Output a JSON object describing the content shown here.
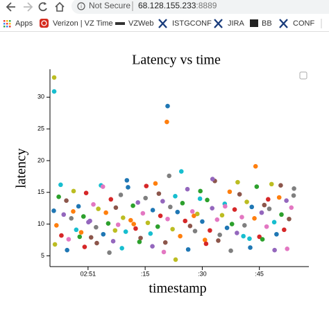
{
  "browser": {
    "security": "Not Secure",
    "url_host": "68.128.155.233",
    "url_port": ":8889"
  },
  "bookmarks": [
    "Apps",
    "Verizon | VZ Time",
    "VZWeb",
    "ISTGCONF",
    "JIRA",
    "BB",
    "CONF"
  ],
  "chart_data": {
    "type": "scatter",
    "title": "Latency vs time",
    "x_label": "timestamp",
    "y_label": "latency",
    "x": [
      -9.0,
      -8.3,
      -7.7,
      -7.0,
      -6.4,
      -5.7,
      -5.1,
      -4.4,
      -3.8,
      -3.1,
      -2.5,
      -1.8,
      -1.2,
      -0.5,
      0.1,
      0.8,
      1.4,
      2.1,
      2.7,
      3.4,
      4.0,
      4.7,
      5.3,
      6.0,
      6.6,
      7.3,
      7.9,
      8.6,
      9.2,
      9.9,
      10.5,
      11.2,
      11.8,
      12.5,
      13.1,
      13.8,
      14.4,
      15.1,
      15.7,
      16.4,
      17.0,
      17.7,
      18.3,
      19.0,
      19.6,
      20.3,
      20.9,
      21.6,
      22.2,
      22.9,
      23.5,
      24.2,
      24.8,
      25.5,
      26.1,
      26.8,
      27.4,
      28.1,
      28.7,
      29.4,
      30.0,
      30.7,
      31.3,
      32.0,
      32.6,
      33.3,
      33.9,
      34.6,
      35.2,
      35.9,
      36.5,
      37.2,
      37.8,
      38.5,
      39.1,
      39.8,
      40.4,
      41.1,
      41.7,
      42.4,
      43.0,
      43.7,
      44.3,
      45.0,
      45.6,
      46.3,
      46.9,
      47.6,
      48.2,
      48.9,
      49.5,
      50.2,
      50.8,
      51.5,
      52.1,
      52.8,
      53.4,
      54.1,
      -8.7,
      -7.2,
      -5.5,
      -3.9,
      -2.2,
      -0.9,
      0.5,
      2.3,
      3.9,
      5.6,
      7.1,
      8.9,
      10.2,
      12.0,
      13.5,
      15.3,
      16.9,
      18.6,
      19.9,
      21.3,
      23.0,
      24.5,
      26.3,
      27.8,
      29.5,
      31.0,
      32.7,
      34.2,
      36.0,
      37.5,
      39.3,
      40.8,
      42.6,
      44.0,
      45.8,
      47.3,
      49.0,
      50.6,
      52.3,
      54.0,
      -8.9,
      -8.9,
      20.9,
      20.7
    ],
    "values": [
      12.1,
      9.8,
      14.3,
      8.2,
      11.5,
      13.7,
      7.6,
      10.9,
      15.2,
      9.1,
      12.8,
      8.7,
      11.2,
      14.9,
      10.3,
      7.9,
      13.1,
      9.5,
      12.4,
      16.1,
      8.4,
      11.8,
      10.1,
      13.9,
      7.3,
      12.6,
      9.9,
      14.6,
      11.0,
      8.8,
      15.8,
      10.6,
      12.9,
      9.3,
      13.4,
      7.8,
      11.7,
      14.1,
      10.2,
      8.5,
      12.2,
      16.4,
      9.6,
      11.3,
      13.6,
      7.1,
      10.8,
      12.7,
      9.2,
      14.4,
      11.9,
      8.1,
      13.3,
      10.5,
      15.5,
      9.7,
      12.0,
      8.9,
      11.6,
      14.0,
      10.4,
      7.5,
      13.8,
      9.0,
      12.5,
      16.8,
      10.7,
      8.3,
      11.4,
      13.2,
      9.4,
      15.1,
      10.0,
      12.3,
      8.6,
      14.7,
      11.1,
      9.8,
      13.5,
      7.7,
      12.7,
      10.9,
      15.9,
      8.0,
      11.8,
      13.0,
      9.6,
      12.4,
      16.3,
      10.3,
      8.4,
      14.2,
      11.5,
      9.1,
      13.7,
      10.8,
      12.6,
      15.6,
      6.8,
      16.2,
      5.9,
      12.0,
      8.0,
      6.4,
      10.5,
      7.0,
      15.9,
      5.5,
      9.0,
      6.2,
      16.9,
      10.0,
      7.2,
      16.0,
      6.5,
      14.8,
      5.6,
      17.6,
      4.4,
      18.3,
      6.0,
      11.3,
      15.2,
      6.9,
      17.1,
      7.4,
      12.8,
      5.8,
      16.6,
      8.1,
      6.3,
      19.1,
      7.6,
      13.9,
      5.9,
      16.1,
      6.1,
      14.5,
      33.1,
      30.9,
      28.6,
      26.1
    ],
    "palette": [
      "#1f77b4",
      "#ff7f0e",
      "#2ca02c",
      "#d62728",
      "#9467bd",
      "#8c564b",
      "#e377c2",
      "#7f7f7f",
      "#bcbd22",
      "#17becf"
    ],
    "xlim": [
      -10,
      58
    ],
    "ylim": [
      3.3,
      34.4
    ],
    "xticks": [
      {
        "value": 0,
        "label": "02:51"
      },
      {
        "value": 15,
        "label": ":15"
      },
      {
        "value": 30,
        "label": ":30"
      },
      {
        "value": 45,
        "label": ":45"
      }
    ],
    "yticks": [
      5,
      10,
      15,
      20,
      25,
      30
    ]
  }
}
